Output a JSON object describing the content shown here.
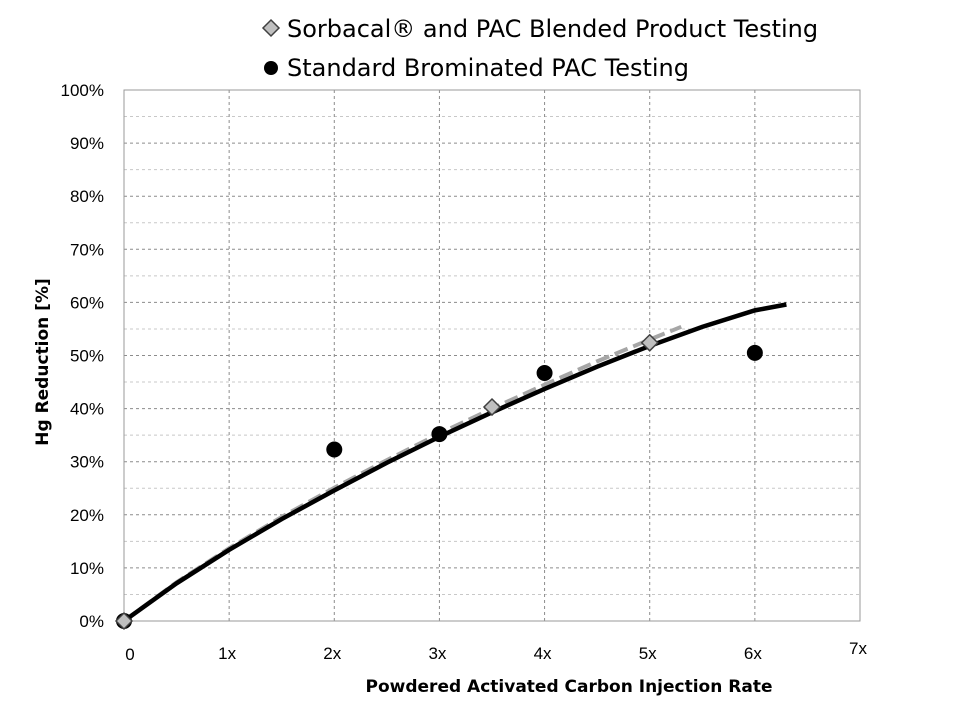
{
  "chart_data": {
    "type": "scatter",
    "title": "",
    "xlabel": "Powdered Activated Carbon Injection Rate",
    "ylabel": "Hg Reduction [%]",
    "xlim": [
      0,
      7
    ],
    "ylim": [
      0,
      100
    ],
    "x_tick_labels": [
      {
        "value": 0,
        "num": "0",
        "unit": ""
      },
      {
        "value": 1,
        "num": "1",
        "unit": "x"
      },
      {
        "value": 2,
        "num": "2",
        "unit": "x"
      },
      {
        "value": 3,
        "num": "3",
        "unit": "x"
      },
      {
        "value": 4,
        "num": "4",
        "unit": "x"
      },
      {
        "value": 5,
        "num": "5",
        "unit": "x"
      },
      {
        "value": 6,
        "num": "6",
        "unit": "x"
      },
      {
        "value": 7,
        "num": "7",
        "unit": "x"
      }
    ],
    "y_ticks": [
      {
        "value": 0,
        "label": "0%"
      },
      {
        "value": 10,
        "label": "10%"
      },
      {
        "value": 20,
        "label": "20%"
      },
      {
        "value": 30,
        "label": "30%"
      },
      {
        "value": 40,
        "label": "40%"
      },
      {
        "value": 50,
        "label": "50%"
      },
      {
        "value": 60,
        "label": "60%"
      },
      {
        "value": 70,
        "label": "70%"
      },
      {
        "value": 80,
        "label": "80%"
      },
      {
        "value": 90,
        "label": "90%"
      },
      {
        "value": 100,
        "label": "100%"
      }
    ],
    "grid": true,
    "legend_placement": "top",
    "series": [
      {
        "name": "Sorbacal® and PAC Blended Product Testing",
        "marker": "diamond",
        "color": "#bfbfbf",
        "points": [
          {
            "x": 0,
            "y": 0
          },
          {
            "x": 3.5,
            "y": 40.3
          },
          {
            "x": 5,
            "y": 52.4
          }
        ],
        "trend": {
          "style": "dashed",
          "color": "#a6a6a6",
          "points": [
            [
              0,
              0
            ],
            [
              0.5,
              7.3
            ],
            [
              1,
              13.7
            ],
            [
              1.5,
              19.6
            ],
            [
              2,
              25.1
            ],
            [
              2.5,
              30.3
            ],
            [
              3,
              35.3
            ],
            [
              3.5,
              40.0
            ],
            [
              4,
              44.5
            ],
            [
              4.5,
              48.9
            ],
            [
              5,
              53.0
            ],
            [
              5.3,
              55.4
            ]
          ]
        }
      },
      {
        "name": "Standard Brominated PAC Testing",
        "marker": "circle",
        "color": "#000000",
        "points": [
          {
            "x": 0,
            "y": 0
          },
          {
            "x": 2,
            "y": 32.3
          },
          {
            "x": 3,
            "y": 35.2
          },
          {
            "x": 4,
            "y": 46.7
          },
          {
            "x": 6,
            "y": 50.5
          }
        ],
        "trend": {
          "style": "solid",
          "color": "#000000",
          "points": [
            [
              0,
              0
            ],
            [
              0.5,
              7.1
            ],
            [
              1,
              13.4
            ],
            [
              1.5,
              19.2
            ],
            [
              2,
              24.6
            ],
            [
              2.5,
              29.8
            ],
            [
              3,
              34.7
            ],
            [
              3.5,
              39.3
            ],
            [
              4,
              43.7
            ],
            [
              4.5,
              47.9
            ],
            [
              5,
              51.8
            ],
            [
              5.5,
              55.4
            ],
            [
              6,
              58.5
            ],
            [
              6.3,
              59.6
            ]
          ]
        }
      }
    ]
  }
}
